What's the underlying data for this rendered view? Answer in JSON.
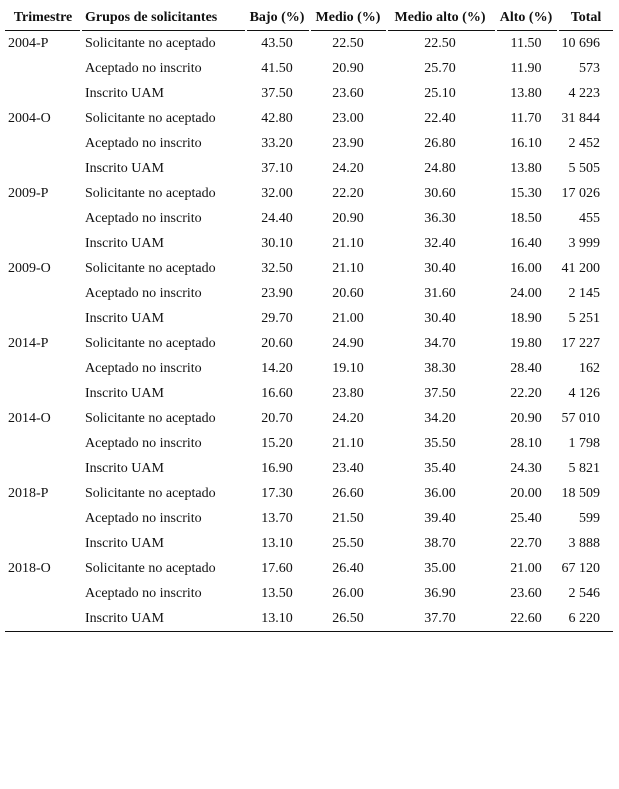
{
  "table": {
    "header": [
      "Trimestre",
      "Grupos de solicitantes",
      "Bajo (%)",
      "Medio (%)",
      "Medio alto (%)",
      "Alto (%)",
      "Total"
    ],
    "groups": [
      {
        "trimestre": "2004-P",
        "rows": [
          [
            "Solicitante no aceptado",
            "43.50",
            "22.50",
            "22.50",
            "11.50",
            "10 696"
          ],
          [
            "Aceptado no inscrito",
            "41.50",
            "20.90",
            "25.70",
            "11.90",
            "573"
          ],
          [
            "Inscrito UAM",
            "37.50",
            "23.60",
            "25.10",
            "13.80",
            "4 223"
          ]
        ]
      },
      {
        "trimestre": "2004-O",
        "rows": [
          [
            "Solicitante no aceptado",
            "42.80",
            "23.00",
            "22.40",
            "11.70",
            "31 844"
          ],
          [
            "Aceptado no inscrito",
            "33.20",
            "23.90",
            "26.80",
            "16.10",
            "2 452"
          ],
          [
            "Inscrito UAM",
            "37.10",
            "24.20",
            "24.80",
            "13.80",
            "5 505"
          ]
        ]
      },
      {
        "trimestre": "2009-P",
        "rows": [
          [
            "Solicitante no aceptado",
            "32.00",
            "22.20",
            "30.60",
            "15.30",
            "17 026"
          ],
          [
            "Aceptado no inscrito",
            "24.40",
            "20.90",
            "36.30",
            "18.50",
            "455"
          ],
          [
            "Inscrito UAM",
            "30.10",
            "21.10",
            "32.40",
            "16.40",
            "3 999"
          ]
        ]
      },
      {
        "trimestre": "2009-O",
        "rows": [
          [
            "Solicitante no aceptado",
            "32.50",
            "21.10",
            "30.40",
            "16.00",
            "41 200"
          ],
          [
            "Aceptado no inscrito",
            "23.90",
            "20.60",
            "31.60",
            "24.00",
            "2 145"
          ],
          [
            "Inscrito UAM",
            "29.70",
            "21.00",
            "30.40",
            "18.90",
            "5 251"
          ]
        ]
      },
      {
        "trimestre": "2014-P",
        "rows": [
          [
            "Solicitante no aceptado",
            "20.60",
            "24.90",
            "34.70",
            "19.80",
            "17 227"
          ],
          [
            "Aceptado no inscrito",
            "14.20",
            "19.10",
            "38.30",
            "28.40",
            "162"
          ],
          [
            "Inscrito UAM",
            "16.60",
            "23.80",
            "37.50",
            "22.20",
            "4 126"
          ]
        ]
      },
      {
        "trimestre": "2014-O",
        "rows": [
          [
            "Solicitante no aceptado",
            "20.70",
            "24.20",
            "34.20",
            "20.90",
            "57 010"
          ],
          [
            "Aceptado no inscrito",
            "15.20",
            "21.10",
            "35.50",
            "28.10",
            "1 798"
          ],
          [
            "Inscrito UAM",
            "16.90",
            "23.40",
            "35.40",
            "24.30",
            "5 821"
          ]
        ]
      },
      {
        "trimestre": "2018-P",
        "rows": [
          [
            "Solicitante no aceptado",
            "17.30",
            "26.60",
            "36.00",
            "20.00",
            "18 509"
          ],
          [
            "Aceptado no inscrito",
            "13.70",
            "21.50",
            "39.40",
            "25.40",
            "599"
          ],
          [
            "Inscrito UAM",
            "13.10",
            "25.50",
            "38.70",
            "22.70",
            "3 888"
          ]
        ]
      },
      {
        "trimestre": "2018-O",
        "rows": [
          [
            "Solicitante no aceptado",
            "17.60",
            "26.40",
            "35.00",
            "21.00",
            "67 120"
          ],
          [
            "Aceptado no inscrito",
            "13.50",
            "26.00",
            "36.90",
            "23.60",
            "2 546"
          ],
          [
            "Inscrito UAM",
            "13.10",
            "26.50",
            "37.70",
            "22.60",
            "6 220"
          ]
        ]
      }
    ]
  }
}
